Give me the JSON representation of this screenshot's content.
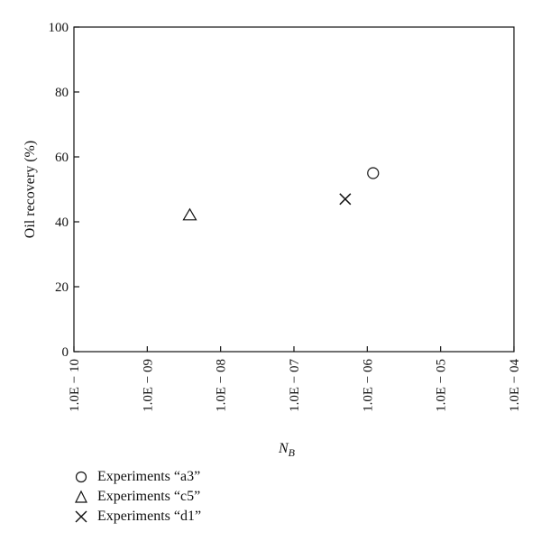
{
  "chart_data": {
    "type": "scatter",
    "xlabel": "N",
    "xlabel_sub": "B",
    "ylabel": "Oil recovery (%)",
    "x_scale": "log",
    "xlim": [
      1e-10,
      0.0001
    ],
    "ylim": [
      0,
      100
    ],
    "x_ticks": [
      1e-10,
      1e-09,
      1e-08,
      1e-07,
      1e-06,
      1e-05,
      0.0001
    ],
    "x_tick_labels": [
      "1.0E − 10",
      "1.0E − 09",
      "1.0E − 08",
      "1.0E − 07",
      "1.0E − 06",
      "1.0E − 05",
      "1.0E − 04"
    ],
    "y_ticks": [
      0,
      20,
      40,
      60,
      80,
      100
    ],
    "y_tick_labels": [
      "0",
      "20",
      "40",
      "60",
      "80",
      "100"
    ],
    "grid": false,
    "legend_position": "bottom-left",
    "series": [
      {
        "name": "Experiments “a3”",
        "marker": "circle",
        "points": [
          {
            "x": 1.2e-06,
            "y": 55
          }
        ]
      },
      {
        "name": "Experiments “c5”",
        "marker": "triangle",
        "points": [
          {
            "x": 3.8e-09,
            "y": 42
          }
        ]
      },
      {
        "name": "Experiments “d1”",
        "marker": "x",
        "points": [
          {
            "x": 5e-07,
            "y": 47
          }
        ]
      }
    ]
  }
}
